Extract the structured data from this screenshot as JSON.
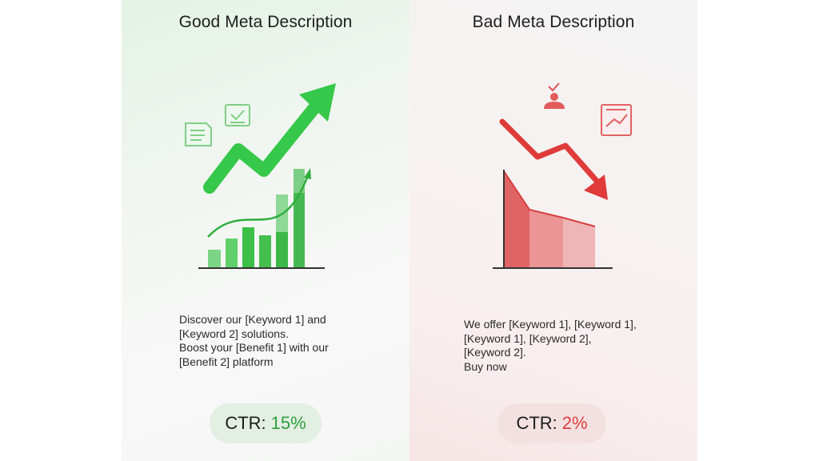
{
  "good": {
    "title": "Good Meta Description",
    "description_lines": [
      "Discover our [Keyword 1] and",
      "[Keyword 2] solutions.",
      "Boost your [Benefit 1] with our",
      "[Benefit 2] platform"
    ],
    "ctr_label": "CTR:",
    "ctr_value": "15%",
    "accent_color": "#35c84a",
    "icons": [
      "document-icon",
      "checkbox-document-icon",
      "trend-up-arrow-icon"
    ]
  },
  "bad": {
    "title": "Bad Meta Description",
    "description_lines": [
      "We offer [Keyword 1], [Keyword 1],",
      "[Keyword 1], [Keyword 2],",
      "[Keyword 2].",
      "Buy now"
    ],
    "ctr_label": "CTR:",
    "ctr_value": "2%",
    "accent_color": "#dd3b3b",
    "icons": [
      "person-check-icon",
      "chart-board-icon",
      "trend-down-arrow-icon"
    ]
  }
}
